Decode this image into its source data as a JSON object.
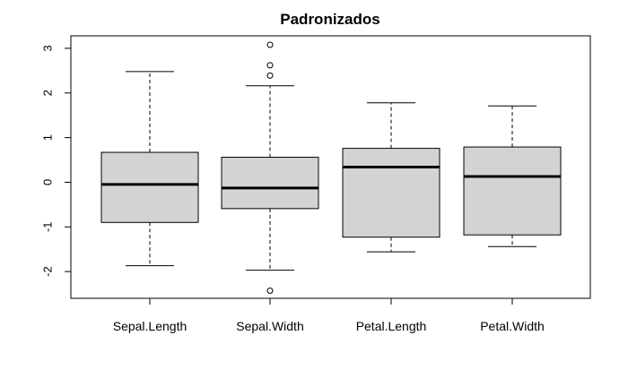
{
  "chart_data": {
    "type": "boxplot",
    "title": "Padronizados",
    "xlabel": "",
    "ylabel": "",
    "categories": [
      "Sepal.Length",
      "Sepal.Width",
      "Petal.Length",
      "Petal.Width"
    ],
    "boxes": [
      {
        "name": "Sepal.Length",
        "whisker_low": -1.87,
        "q1": -0.9,
        "median": -0.05,
        "q3": 0.67,
        "whisker_high": 2.48,
        "outliers": []
      },
      {
        "name": "Sepal.Width",
        "whisker_low": -1.97,
        "q1": -0.59,
        "median": -0.13,
        "q3": 0.56,
        "whisker_high": 2.16,
        "outliers": [
          3.08,
          2.62,
          2.39,
          -2.43
        ]
      },
      {
        "name": "Petal.Length",
        "whisker_low": -1.56,
        "q1": -1.23,
        "median": 0.34,
        "q3": 0.76,
        "whisker_high": 1.78,
        "outliers": []
      },
      {
        "name": "Petal.Width",
        "whisker_low": -1.44,
        "q1": -1.18,
        "median": 0.13,
        "q3": 0.79,
        "whisker_high": 1.71,
        "outliers": []
      }
    ],
    "yticks": [
      -2,
      -1,
      0,
      1,
      2,
      3
    ],
    "ylim": [
      -2.6,
      3.28
    ],
    "grid": false,
    "box_fill": "#d3d3d3"
  }
}
